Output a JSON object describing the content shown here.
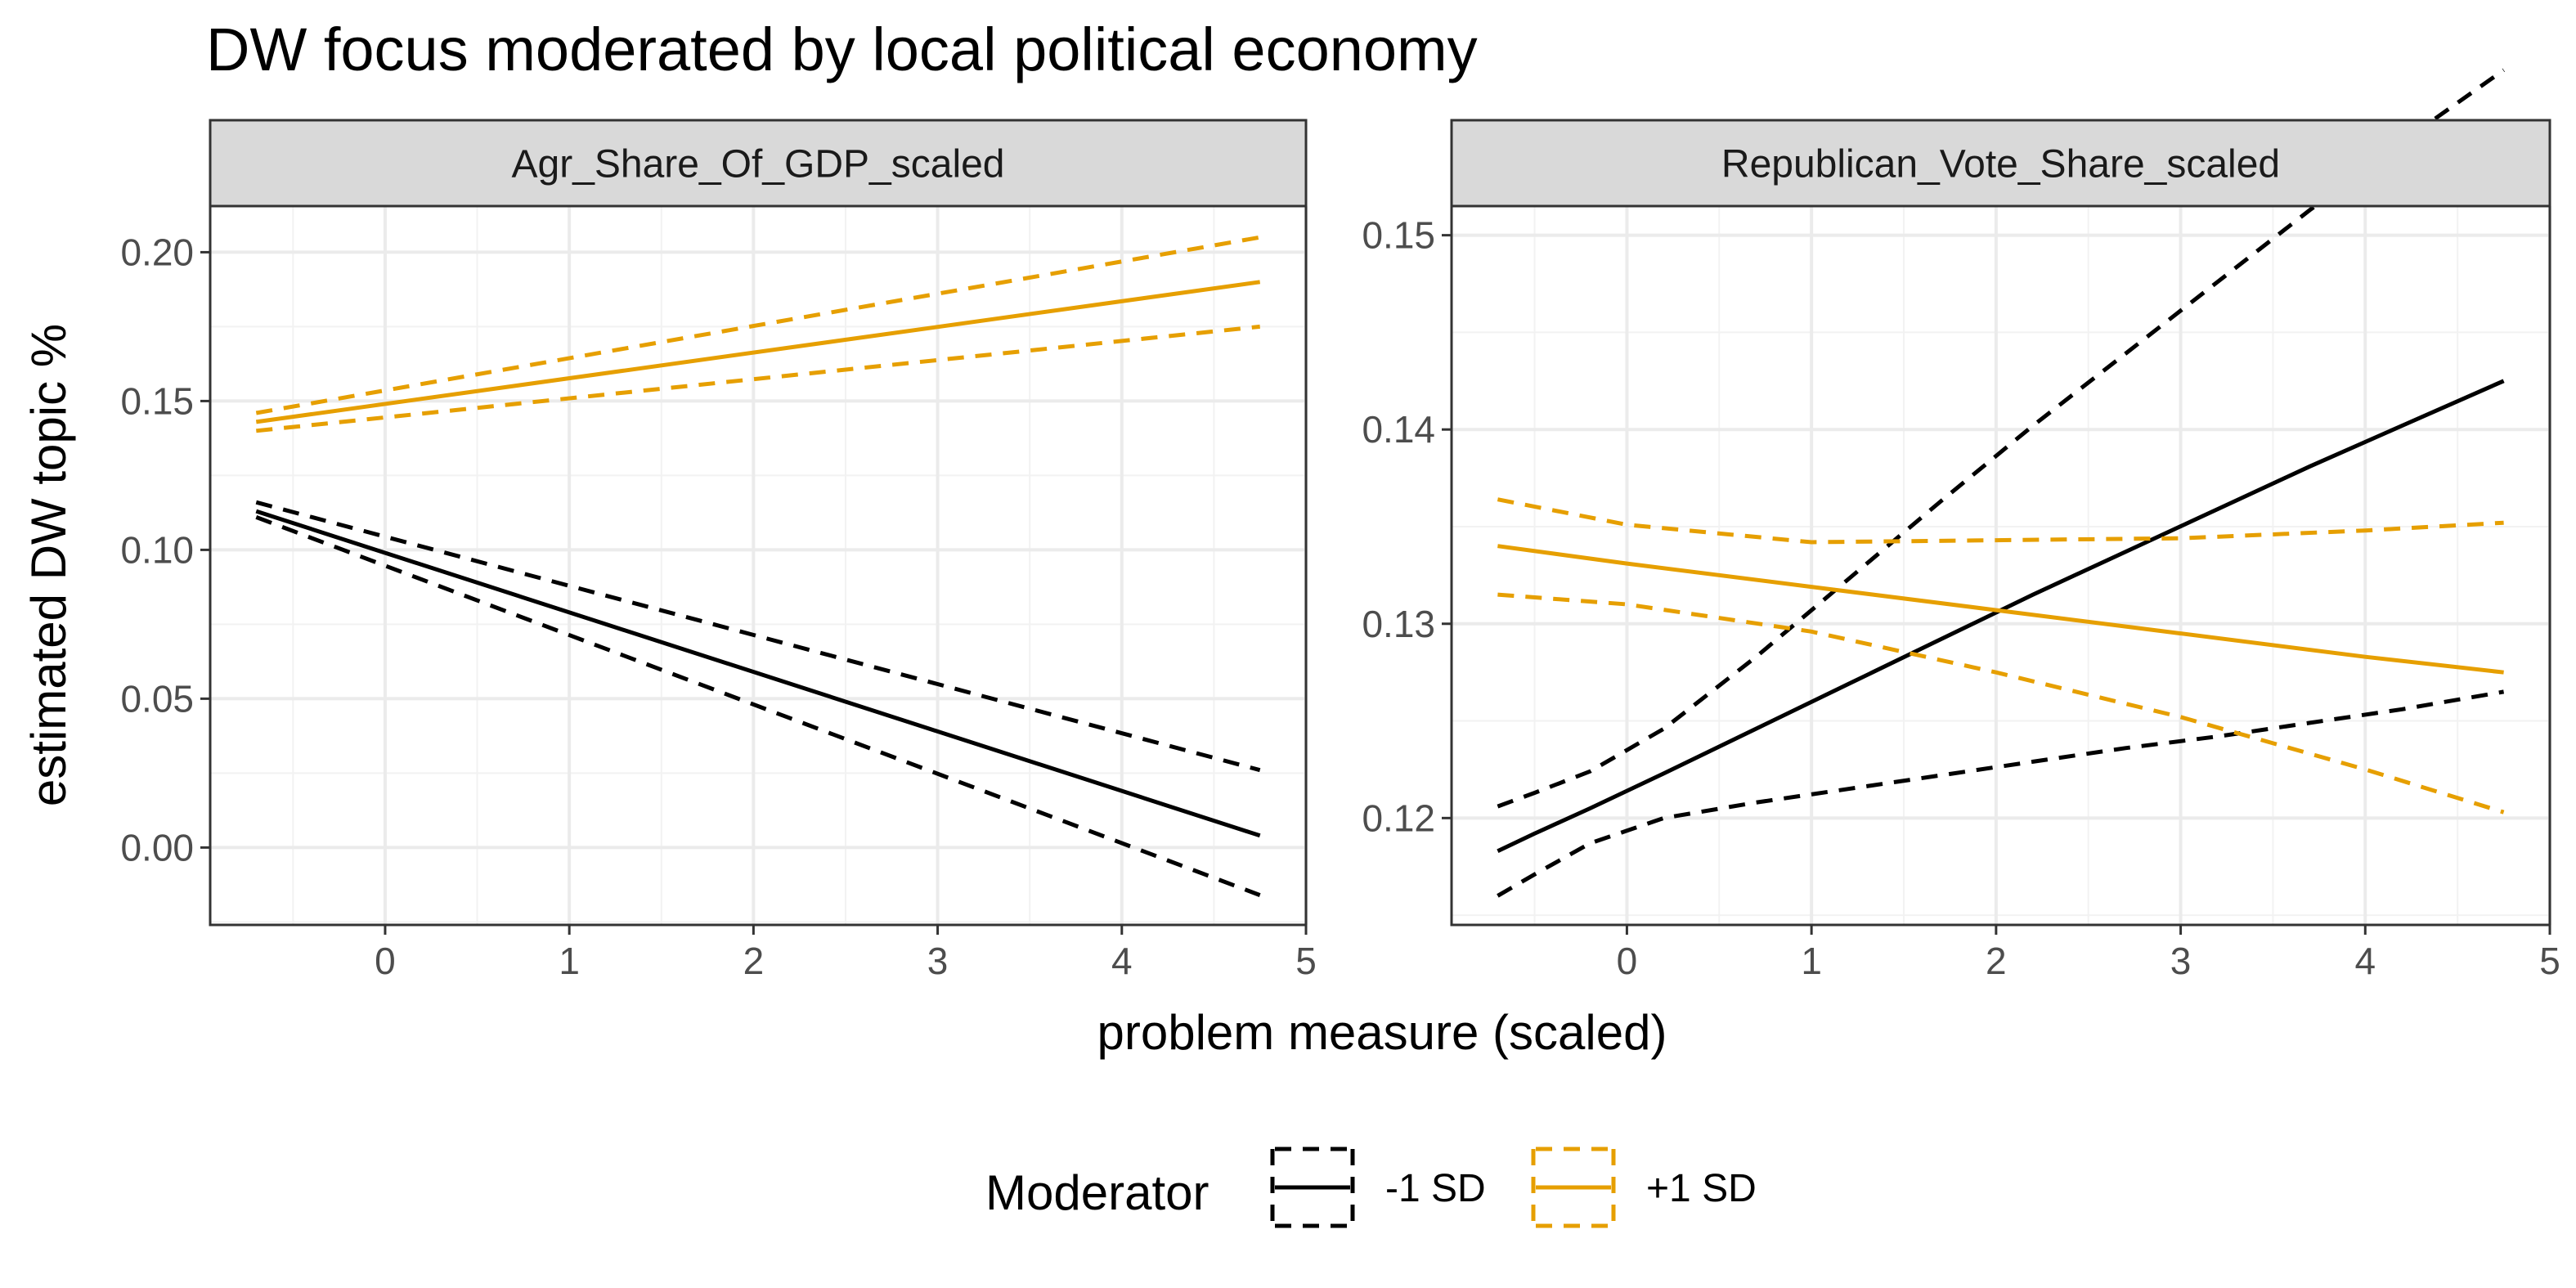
{
  "chart_data": {
    "type": "line",
    "title": "DW focus moderated by local political economy",
    "xlabel": "problem measure (scaled)",
    "ylabel": "estimated DW topic %",
    "xlim": [
      -0.95,
      5.0
    ],
    "x_ticks": [
      0,
      1,
      2,
      3,
      4,
      5
    ],
    "grid": true,
    "legend": {
      "title": "Moderator",
      "position": "bottom",
      "entries": [
        {
          "label": "-1 SD",
          "color": "#000000"
        },
        {
          "label": "+1 SD",
          "color": "#E69F00"
        }
      ]
    },
    "panels": [
      {
        "strip": "Agr_Share_Of_GDP_scaled",
        "ylim": [
          -0.026,
          0.2155
        ],
        "y_ticks": [
          0.0,
          0.05,
          0.1,
          0.15,
          0.2
        ],
        "y_tick_labels": [
          "0.00",
          "0.05",
          "0.10",
          "0.15",
          "0.20"
        ],
        "series": [
          {
            "name": "-1 SD",
            "color": "#000000",
            "x": [
              -0.7,
              4.75
            ],
            "estimate": [
              0.113,
              0.004
            ],
            "lower": [
              0.111,
              -0.016
            ],
            "upper": [
              0.116,
              0.026
            ]
          },
          {
            "name": "+1 SD",
            "color": "#E69F00",
            "x": [
              -0.7,
              4.75
            ],
            "estimate": [
              0.143,
              0.19
            ],
            "lower": [
              0.14,
              0.175
            ],
            "upper": [
              0.146,
              0.205
            ]
          }
        ]
      },
      {
        "strip": "Republican_Vote_Share_scaled",
        "ylim": [
          0.1145,
          0.1515
        ],
        "y_ticks": [
          0.12,
          0.13,
          0.14,
          0.15
        ],
        "y_tick_labels": [
          "0.12",
          "0.13",
          "0.14",
          "0.15"
        ],
        "series": [
          {
            "name": "-1 SD",
            "color": "#000000",
            "x": [
              -0.7,
              -0.5,
              -0.2,
              0.2,
              0.7,
              1.2,
              1.7,
              2.2,
              2.7,
              3.2,
              3.7,
              4.2,
              4.75
            ],
            "estimate": [
              0.1183,
              0.1192,
              0.1205,
              0.1223,
              0.1246,
              0.1269,
              0.1292,
              0.1315,
              0.1337,
              0.1359,
              0.1381,
              0.1402,
              0.1425
            ],
            "lower": [
              0.116,
              0.1171,
              0.1187,
              0.12,
              0.1208,
              0.1215,
              0.1222,
              0.1229,
              0.1236,
              0.1242,
              0.1249,
              0.1256,
              0.1265
            ],
            "upper": [
              0.1206,
              0.1213,
              0.1224,
              0.1246,
              0.1283,
              0.1323,
              0.1363,
              0.1402,
              0.1439,
              0.1476,
              0.1513,
              0.1548,
              0.1585
            ]
          },
          {
            "name": "+1 SD",
            "color": "#E69F00",
            "x": [
              -0.7,
              0,
              1,
              2,
              3,
              4,
              4.75
            ],
            "estimate": [
              0.134,
              0.1331,
              0.1319,
              0.1307,
              0.1295,
              0.1283,
              0.1275
            ],
            "lower": [
              0.1315,
              0.131,
              0.1296,
              0.1275,
              0.1252,
              0.1225,
              0.1203
            ],
            "upper": [
              0.1364,
              0.1351,
              0.1342,
              0.1343,
              0.1344,
              0.1348,
              0.1352
            ]
          }
        ]
      }
    ]
  }
}
